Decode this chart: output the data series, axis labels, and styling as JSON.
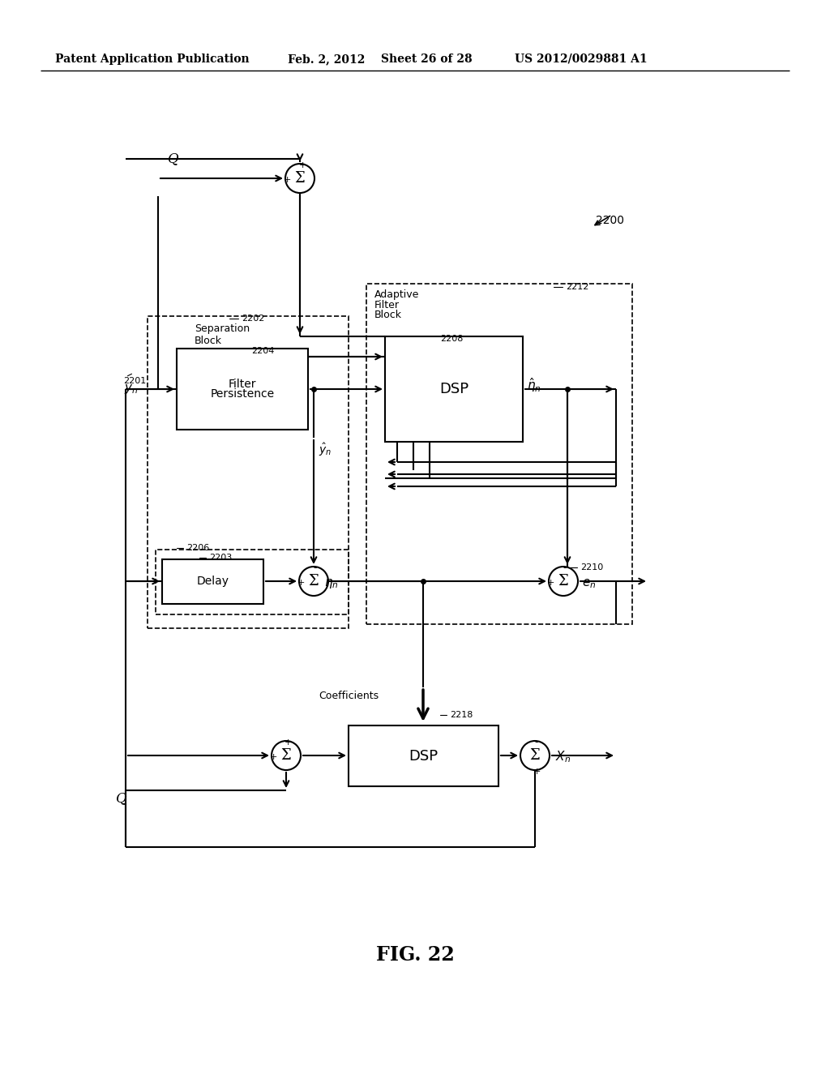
{
  "bg_color": "#ffffff",
  "header_left": "Patent Application Publication",
  "header_mid": "Feb. 2, 2012",
  "header_sheet": "Sheet 26 of 28",
  "header_right": "US 2012/0029881 A1",
  "fig_label": "FIG. 22"
}
